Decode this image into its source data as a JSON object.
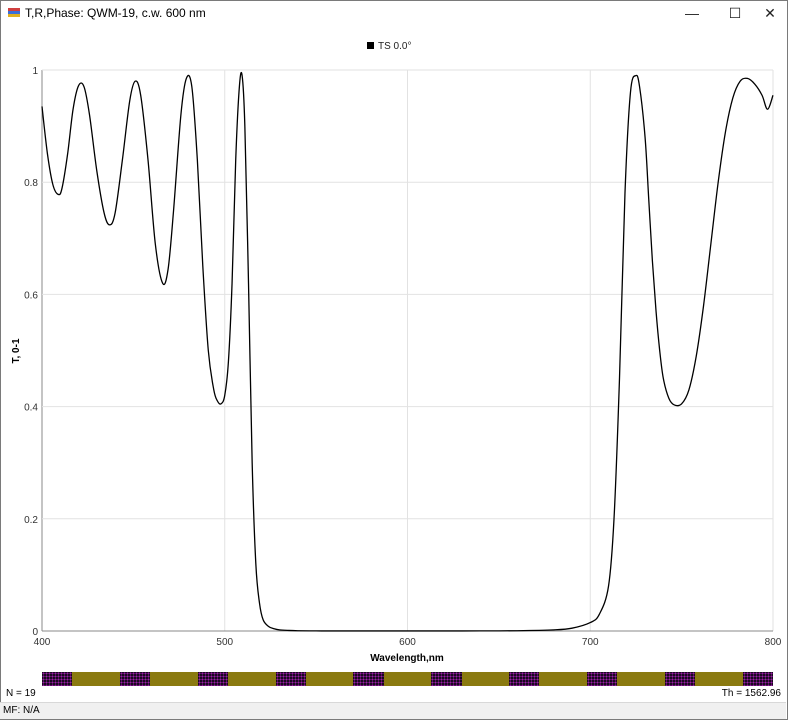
{
  "window": {
    "title": "T,R,Phase: QWM-19, c.w. 600 nm",
    "minimize_glyph": "—",
    "maximize_glyph": "☐",
    "close_glyph": "✕"
  },
  "status": {
    "n_label": "N = 19",
    "th_label": "Th = 1562.96",
    "mf_label": "MF: N/A"
  },
  "layers": {
    "count": 19,
    "pattern": [
      "H",
      "L",
      "H",
      "L",
      "H",
      "L",
      "H",
      "L",
      "H",
      "L",
      "H",
      "L",
      "H",
      "L",
      "H",
      "L",
      "H",
      "L",
      "H"
    ],
    "colors": {
      "H": "#1a0720",
      "L": "#8a7a10"
    }
  },
  "chart_data": {
    "type": "line",
    "xlabel": "Wavelength,nm",
    "ylabel": "T, 0-1",
    "xlim": [
      400,
      800
    ],
    "ylim": [
      0,
      1
    ],
    "xticks": [
      400,
      500,
      600,
      700,
      800
    ],
    "yticks": [
      0,
      0.2,
      0.4,
      0.6,
      0.8,
      1
    ],
    "grid": true,
    "legend_position": "top-center",
    "series": [
      {
        "name": "TS 0.0°",
        "color": "#000000",
        "x": [
          400,
          403,
          406,
          409,
          411,
          414,
          417,
          420,
          423,
          426,
          430,
          434,
          437,
          440,
          444,
          448,
          451,
          454,
          458,
          462,
          466,
          469,
          472,
          476,
          479,
          482,
          485,
          488,
          491,
          494,
          496,
          498,
          500,
          502,
          504,
          506,
          508,
          509.5,
          511,
          513,
          515,
          517,
          519,
          521,
          524,
          527,
          530,
          535,
          540,
          550,
          560,
          580,
          600,
          620,
          640,
          660,
          680,
          690,
          700,
          705,
          710,
          713,
          716,
          719,
          722,
          725,
          727,
          730,
          732,
          734,
          736,
          738,
          740,
          743,
          746,
          750,
          754,
          758,
          762,
          766,
          770,
          774,
          778,
          782,
          786,
          790,
          794,
          797,
          800
        ],
        "y": [
          0.935,
          0.85,
          0.795,
          0.778,
          0.79,
          0.85,
          0.93,
          0.972,
          0.97,
          0.92,
          0.82,
          0.745,
          0.724,
          0.745,
          0.84,
          0.945,
          0.98,
          0.955,
          0.84,
          0.69,
          0.62,
          0.645,
          0.75,
          0.92,
          0.985,
          0.97,
          0.84,
          0.65,
          0.5,
          0.43,
          0.41,
          0.405,
          0.42,
          0.48,
          0.62,
          0.84,
          0.97,
          0.99,
          0.9,
          0.62,
          0.3,
          0.12,
          0.05,
          0.02,
          0.008,
          0.004,
          0.002,
          0.001,
          0.0005,
          0.0002,
          0.0001,
          0.0001,
          0.0001,
          0.0001,
          0.0002,
          0.0005,
          0.002,
          0.005,
          0.015,
          0.03,
          0.08,
          0.2,
          0.45,
          0.78,
          0.96,
          0.99,
          0.97,
          0.88,
          0.77,
          0.66,
          0.57,
          0.5,
          0.45,
          0.415,
          0.403,
          0.405,
          0.43,
          0.49,
          0.58,
          0.69,
          0.8,
          0.89,
          0.95,
          0.98,
          0.985,
          0.975,
          0.955,
          0.93,
          0.955
        ]
      }
    ]
  }
}
